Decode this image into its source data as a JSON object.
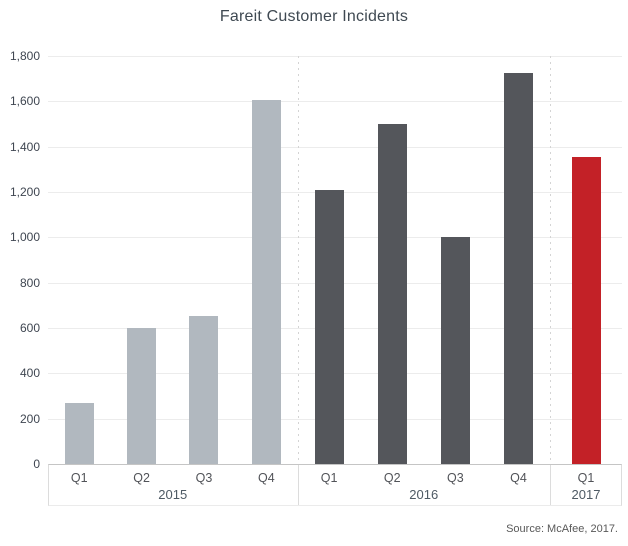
{
  "chart_data": {
    "type": "bar",
    "title": "Fareit Customer Incidents",
    "source": "Source: McAfee, 2017.",
    "xlabel": "",
    "ylabel": "",
    "ylim": [
      0,
      1800
    ],
    "ytick_interval": 200,
    "ytick_labels": [
      "0",
      "200",
      "400",
      "600",
      "800",
      "1,000",
      "1,200",
      "1,400",
      "1,600",
      "1,800"
    ],
    "grid": true,
    "legend": "none",
    "groups": [
      {
        "year": "2015",
        "categories": [
          "Q1",
          "Q2",
          "Q3",
          "Q4"
        ],
        "values": [
          270,
          600,
          655,
          1605
        ],
        "color": "#b1b8bf"
      },
      {
        "year": "2016",
        "categories": [
          "Q1",
          "Q2",
          "Q3",
          "Q4"
        ],
        "values": [
          1210,
          1500,
          1000,
          1725
        ],
        "color": "#54565b"
      },
      {
        "year": "2017",
        "categories": [
          "Q1"
        ],
        "values": [
          1355
        ],
        "color": "#c32127"
      }
    ]
  }
}
